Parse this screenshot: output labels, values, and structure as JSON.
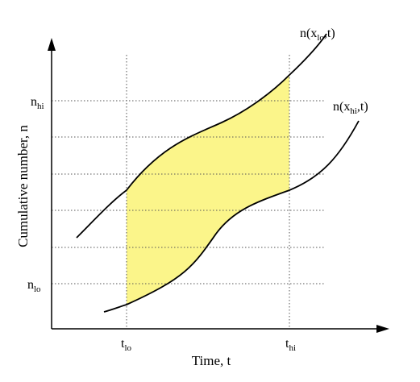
{
  "diagram": {
    "curves": [
      {
        "id": "xlo",
        "main": "n(x",
        "sub": "lo",
        "tail": ",t)"
      },
      {
        "id": "xhi",
        "main": "n(x",
        "sub": "hi",
        "tail": ",t)"
      }
    ],
    "y_ticks": [
      {
        "id": "nhi",
        "main": "n",
        "sub": "hi"
      },
      {
        "id": "nlo",
        "main": "n",
        "sub": "lo"
      }
    ],
    "x_ticks": [
      {
        "id": "tlo",
        "main": "t",
        "sub": "lo"
      },
      {
        "id": "thi",
        "main": "t",
        "sub": "hi"
      }
    ],
    "xlabel": "Time, t",
    "ylabel": "Cumulative number, n",
    "colors": {
      "region_fill": "#fbf58a",
      "curve": "#000000",
      "grid": "#555555"
    }
  }
}
